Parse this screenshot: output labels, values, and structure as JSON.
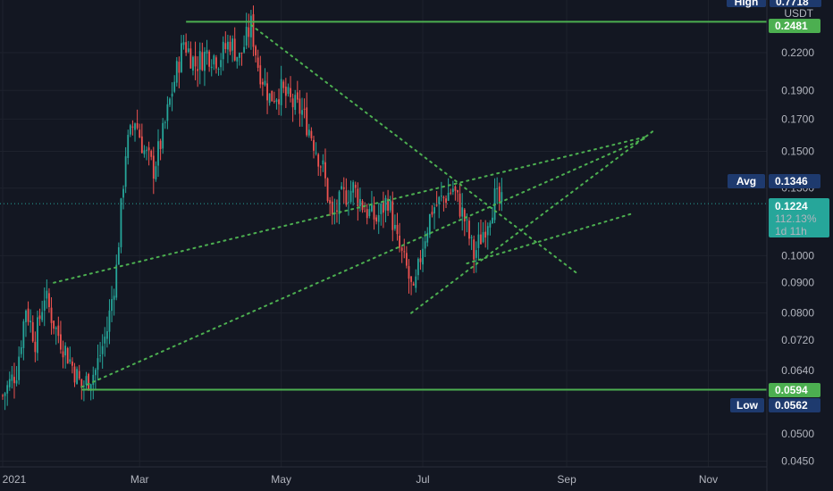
{
  "chart_data": {
    "type": "candlestick",
    "title": "",
    "ylim": [
      0.044,
      0.27
    ],
    "y_scale": "log",
    "currency_label": "USDT",
    "x_ticks": [
      {
        "label": "2021",
        "day": 0
      },
      {
        "label": "Mar",
        "day": 59
      },
      {
        "label": "May",
        "day": 120
      },
      {
        "label": "Jul",
        "day": 181
      },
      {
        "label": "Sep",
        "day": 243
      },
      {
        "label": "Nov",
        "day": 304
      }
    ],
    "y_ticks": [
      "0.2200",
      "0.1900",
      "0.1700",
      "0.1500",
      "0.1300",
      "0.1000",
      "0.0900",
      "0.0800",
      "0.0720",
      "0.0640",
      "0.0500",
      "0.0450"
    ],
    "y_tick_values": [
      0.22,
      0.19,
      0.17,
      0.15,
      0.13,
      0.1,
      0.09,
      0.08,
      0.072,
      0.064,
      0.05,
      0.045
    ],
    "price_tags": {
      "high": {
        "label": "High",
        "value": "0.7718"
      },
      "resistance": {
        "value": "0.2481"
      },
      "avg": {
        "label": "Avg",
        "value": "0.1346"
      },
      "current": {
        "value": "0.1224",
        "change": "112.13%",
        "countdown": "1d 11h"
      },
      "support": {
        "value": "0.0594"
      },
      "low": {
        "label": "Low",
        "value": "0.0562"
      }
    },
    "levels": {
      "resistance": 0.2481,
      "support": 0.0594,
      "current": 0.1224
    },
    "trend_lines": [
      {
        "from": [
          34,
          0.06
        ],
        "to": [
          278,
          0.1585
        ]
      },
      {
        "from": [
          22,
          0.09
        ],
        "to": [
          278,
          0.159
        ]
      },
      {
        "from": [
          107,
          0.245
        ],
        "to": [
          248,
          0.093
        ]
      },
      {
        "from": [
          176,
          0.08
        ],
        "to": [
          280,
          0.162
        ]
      },
      {
        "from": [
          200,
          0.097
        ],
        "to": [
          272,
          0.118
        ]
      }
    ],
    "candles_keyframes": [
      [
        0,
        0.058
      ],
      [
        6,
        0.064
      ],
      [
        10,
        0.082
      ],
      [
        14,
        0.072
      ],
      [
        18,
        0.086
      ],
      [
        23,
        0.075
      ],
      [
        28,
        0.068
      ],
      [
        34,
        0.06
      ],
      [
        40,
        0.064
      ],
      [
        45,
        0.075
      ],
      [
        49,
        0.095
      ],
      [
        53,
        0.15
      ],
      [
        57,
        0.17
      ],
      [
        61,
        0.15
      ],
      [
        65,
        0.14
      ],
      [
        69,
        0.16
      ],
      [
        73,
        0.19
      ],
      [
        78,
        0.23
      ],
      [
        83,
        0.21
      ],
      [
        88,
        0.22
      ],
      [
        93,
        0.215
      ],
      [
        98,
        0.23
      ],
      [
        102,
        0.215
      ],
      [
        107,
        0.245
      ],
      [
        110,
        0.21
      ],
      [
        115,
        0.185
      ],
      [
        120,
        0.19
      ],
      [
        125,
        0.18
      ],
      [
        129,
        0.175
      ],
      [
        133,
        0.16
      ],
      [
        138,
        0.14
      ],
      [
        142,
        0.115
      ],
      [
        146,
        0.125
      ],
      [
        151,
        0.13
      ],
      [
        156,
        0.12
      ],
      [
        161,
        0.115
      ],
      [
        166,
        0.125
      ],
      [
        170,
        0.105
      ],
      [
        174,
        0.095
      ],
      [
        177,
        0.085
      ],
      [
        181,
        0.105
      ],
      [
        185,
        0.12
      ],
      [
        190,
        0.125
      ],
      [
        194,
        0.13
      ],
      [
        199,
        0.115
      ],
      [
        203,
        0.1
      ],
      [
        207,
        0.11
      ],
      [
        212,
        0.125
      ],
      [
        215,
        0.122
      ]
    ]
  }
}
